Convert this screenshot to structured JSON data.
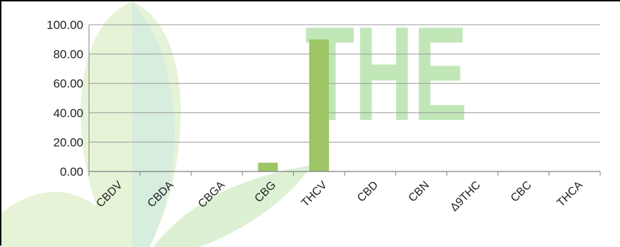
{
  "chart_data": {
    "type": "bar",
    "categories": [
      "CBDV",
      "CBDA",
      "CBGA",
      "CBG",
      "THCV",
      "CBD",
      "CBN",
      "Δ9THC",
      "CBC",
      "THCA"
    ],
    "values": [
      0,
      0,
      0,
      6,
      90,
      0,
      0,
      0,
      0,
      0
    ],
    "y_ticks": [
      "0.00",
      "20.00",
      "40.00",
      "60.00",
      "80.00",
      "100.00"
    ],
    "ylim": [
      0,
      100
    ],
    "grid": true,
    "bar_color": "#9dc566",
    "axis_color": "#7f7f7f",
    "watermark": {
      "text": "THE",
      "color": "#77cc66"
    }
  }
}
